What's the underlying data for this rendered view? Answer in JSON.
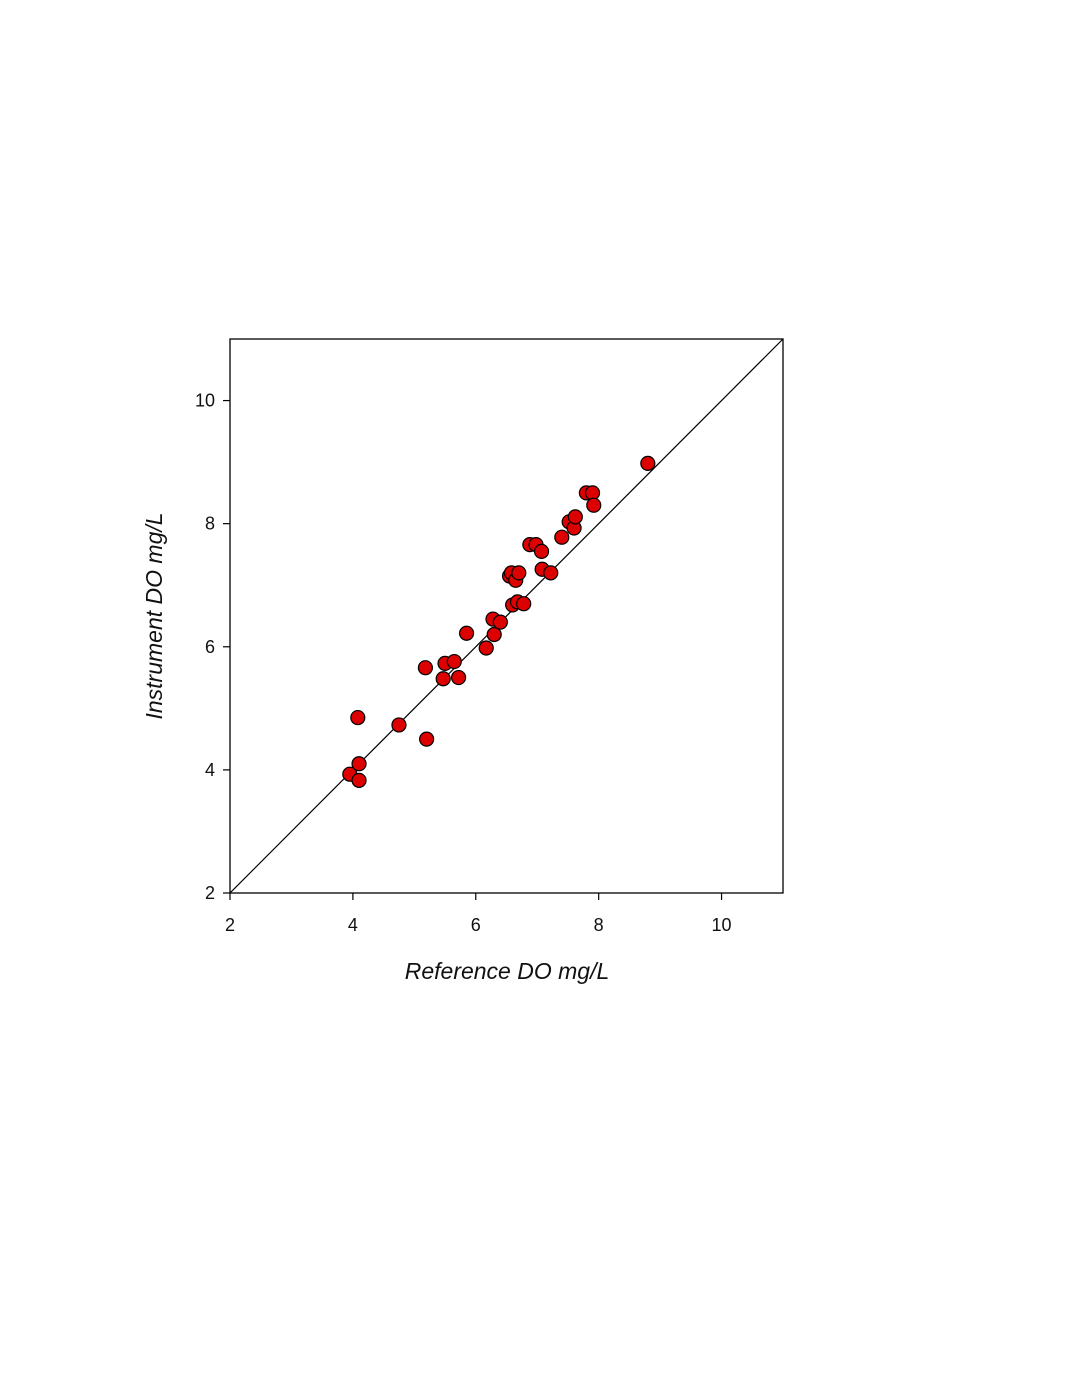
{
  "chart_data": {
    "type": "scatter",
    "xlabel": "Reference DO mg/L",
    "ylabel": "Instrument DO mg/L",
    "xlim": [
      2,
      11
    ],
    "ylim": [
      2,
      11
    ],
    "x_ticks": [
      "2",
      "4",
      "6",
      "8",
      "10"
    ],
    "y_ticks": [
      "2",
      "4",
      "6",
      "8",
      "10"
    ],
    "grid": false,
    "reference_line": "1:1 line",
    "marker_color": "#dd0000",
    "marker_edge_color": "#000000",
    "series": [
      {
        "points": [
          [
            3.95,
            3.93
          ],
          [
            4.1,
            3.83
          ],
          [
            4.1,
            4.1
          ],
          [
            4.08,
            4.85
          ],
          [
            4.75,
            4.73
          ],
          [
            5.2,
            4.5
          ],
          [
            5.18,
            5.66
          ],
          [
            5.47,
            5.48
          ],
          [
            5.5,
            5.73
          ],
          [
            5.65,
            5.76
          ],
          [
            5.72,
            5.5
          ],
          [
            5.85,
            6.22
          ],
          [
            6.17,
            5.98
          ],
          [
            6.28,
            6.45
          ],
          [
            6.3,
            6.2
          ],
          [
            6.4,
            6.4
          ],
          [
            6.55,
            7.15
          ],
          [
            6.58,
            7.2
          ],
          [
            6.6,
            6.68
          ],
          [
            6.65,
            7.08
          ],
          [
            6.68,
            6.73
          ],
          [
            6.7,
            7.2
          ],
          [
            6.78,
            6.7
          ],
          [
            6.88,
            7.66
          ],
          [
            6.98,
            7.66
          ],
          [
            7.07,
            7.55
          ],
          [
            7.08,
            7.26
          ],
          [
            7.22,
            7.2
          ],
          [
            7.4,
            7.78
          ],
          [
            7.52,
            8.03
          ],
          [
            7.6,
            7.93
          ],
          [
            7.62,
            8.11
          ],
          [
            7.8,
            8.5
          ],
          [
            7.9,
            8.5
          ],
          [
            7.92,
            8.3
          ],
          [
            8.8,
            8.98
          ]
        ]
      }
    ]
  }
}
